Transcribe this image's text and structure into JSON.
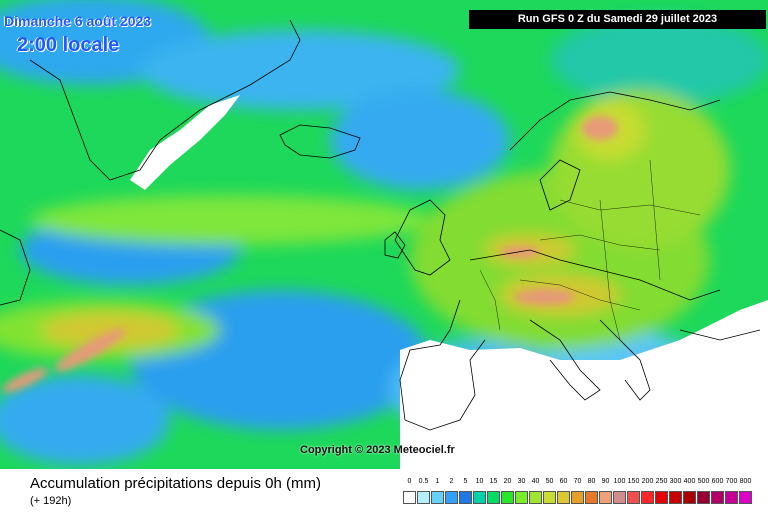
{
  "header": {
    "date": "Dimanche 6 août 2023",
    "local_time": "2:00 locale",
    "run_info": "Run GFS 0 Z du Samedi 29 juillet 2023"
  },
  "map": {
    "copyright": "Copyright © 2023 Meteociel.fr",
    "base_color": "#1dd85a"
  },
  "footer": {
    "title": "Accumulation précipitations depuis 0h (mm)",
    "subtitle": "(+ 192h)"
  },
  "legend": {
    "labels": [
      "0",
      "0.5",
      "1",
      "2",
      "5",
      "10",
      "15",
      "20",
      "30",
      "40",
      "50",
      "60",
      "70",
      "80",
      "90",
      "100",
      "150",
      "200",
      "250",
      "300",
      "400",
      "500",
      "600",
      "700",
      "800"
    ],
    "colors": [
      "#ffffff",
      "#b4f0ff",
      "#64d2ff",
      "#32a0ff",
      "#1e78e6",
      "#00d2aa",
      "#00dc64",
      "#28e628",
      "#78ee28",
      "#a0e632",
      "#c8dc32",
      "#dcc832",
      "#e6a028",
      "#e67828",
      "#f0a078",
      "#d28c8c",
      "#f05050",
      "#ff2828",
      "#e60000",
      "#c80000",
      "#aa0000",
      "#960032",
      "#b40064",
      "#c80096",
      "#dc00c8"
    ]
  }
}
